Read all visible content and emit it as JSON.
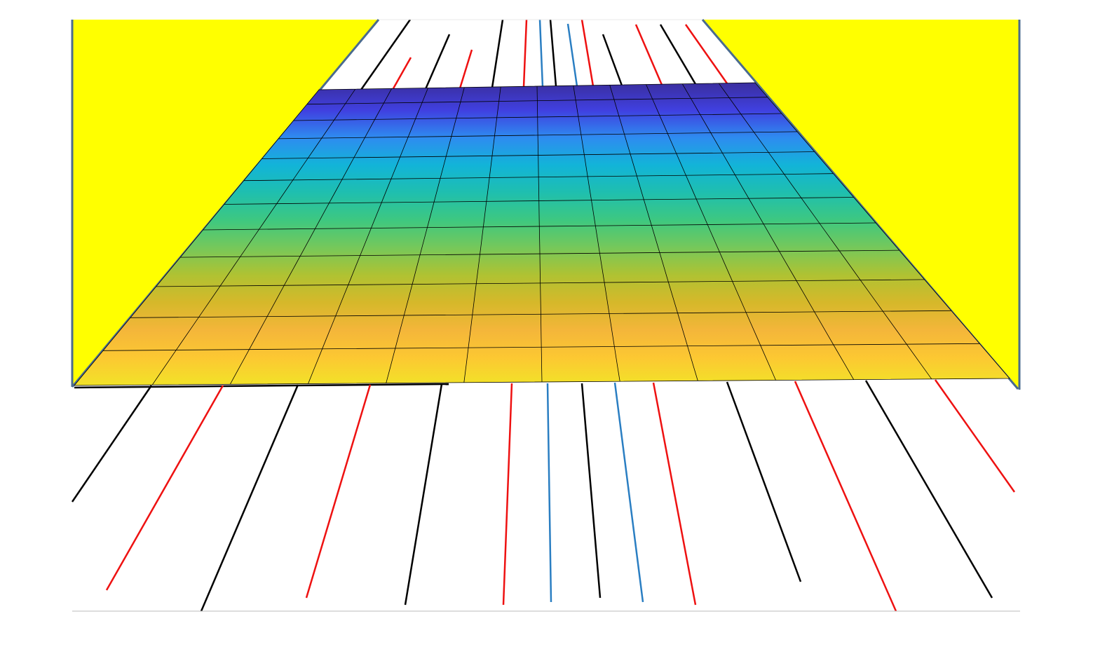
{
  "colors": {
    "background": "#ffffff",
    "wall_fill": "#ffff00",
    "wall_edge": "#4a6b8f",
    "grid_line": "#000000",
    "frame_line": "#bbbbbb",
    "surface_gradient": [
      "#3a2e9e",
      "#4040e0",
      "#2e8cf0",
      "#12b4d8",
      "#1fbfae",
      "#3ec880",
      "#76c85a",
      "#b0c232",
      "#d6b82a",
      "#f4b63a",
      "#fcc832",
      "#f2e328"
    ],
    "ray_colors": {
      "black": "#000000",
      "red": "#ee1111",
      "blue": "#2a7ec2"
    }
  },
  "rays": [
    {
      "color": "black"
    },
    {
      "color": "red"
    },
    {
      "color": "black"
    },
    {
      "color": "red"
    },
    {
      "color": "black"
    },
    {
      "color": "red"
    },
    {
      "color": "blue"
    },
    {
      "color": "black"
    },
    {
      "color": "blue"
    },
    {
      "color": "red"
    },
    {
      "color": "black"
    },
    {
      "color": "red"
    },
    {
      "color": "black"
    },
    {
      "color": "red"
    }
  ],
  "surface": {
    "rows": 12,
    "cols": 12
  }
}
